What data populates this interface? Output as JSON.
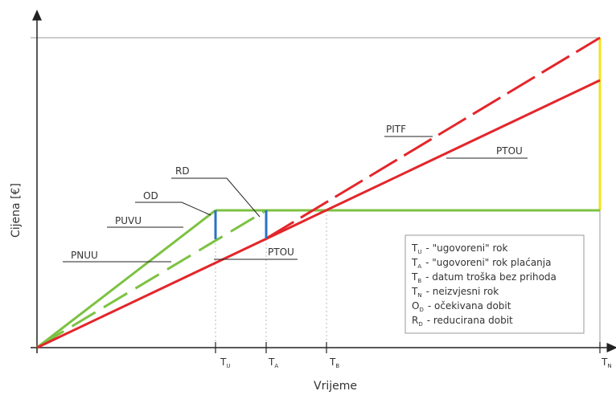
{
  "axes": {
    "x_title": "Vrijeme",
    "y_title": "Cijena [€]"
  },
  "ticks": [
    {
      "main": "T",
      "sub": "U"
    },
    {
      "main": "T",
      "sub": "A"
    },
    {
      "main": "T",
      "sub": "B"
    },
    {
      "main": "T",
      "sub": "N"
    }
  ],
  "callouts": {
    "rd": "RD",
    "od": "OD",
    "puvu": "PUVU",
    "pnuu": "PNUU",
    "ptou_low": "PTOU",
    "pitf": "PITF",
    "ptou_high": "PTOU"
  },
  "legend": [
    {
      "main": "T",
      "sub": "U",
      "text": "- \"ugovoreni\" rok"
    },
    {
      "main": "T",
      "sub": "A",
      "text": "- \"ugovoreni\" rok plaćanja"
    },
    {
      "main": "T",
      "sub": "B",
      "text": "- datum troška bez prihoda"
    },
    {
      "main": "T",
      "sub": "N",
      "text": "- neizvjesni rok"
    },
    {
      "main": "O",
      "sub": "D",
      "text": "- očekivana dobit"
    },
    {
      "main": "R",
      "sub": "D",
      "text": "- reducirana dobit"
    }
  ],
  "colors": {
    "red": "#e3262b",
    "green": "#7cc242",
    "blue": "#2a72c4",
    "yellow": "#f2e21c",
    "axis": "#222222",
    "guide": "#999999"
  }
}
